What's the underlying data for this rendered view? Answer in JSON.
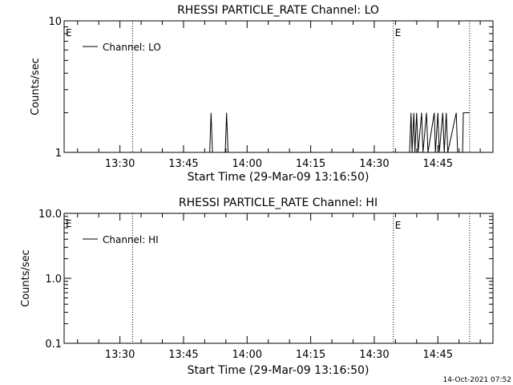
{
  "footer": {
    "timestamp": "14-Oct-2021 07:52"
  },
  "chart_data": [
    {
      "type": "line",
      "title": "RHESSI PARTICLE_RATE Channel: LO",
      "xlabel": "Start Time (29-Mar-09 13:16:50)",
      "ylabel": "Counts/sec",
      "yscale": "log",
      "ylim": [
        1,
        10
      ],
      "ytick_labels": [
        "10",
        "1"
      ],
      "xlim": [
        "13:16:50",
        "14:58:00"
      ],
      "xtick_labels": [
        "13:30",
        "13:45",
        "14:00",
        "14:15",
        "14:30",
        "14:45"
      ],
      "event_lines": [
        {
          "time": "13:33:00",
          "label": ""
        },
        {
          "time": "14:34:30",
          "label": "E"
        },
        {
          "time": "14:52:30",
          "label": ""
        }
      ],
      "left_marker": "E",
      "legend": {
        "label": "Channel: LO",
        "position": "top-left"
      },
      "series": [
        {
          "name": "Channel: LO",
          "points": [
            [
              "13:16:50",
              1
            ],
            [
              "13:51:10",
              1
            ],
            [
              "13:51:30",
              2
            ],
            [
              "13:51:50",
              1
            ],
            [
              "13:54:50",
              1
            ],
            [
              "13:55:10",
              2
            ],
            [
              "13:55:30",
              1
            ],
            [
              "14:38:20",
              1
            ],
            [
              "14:38:40",
              2
            ],
            [
              "14:38:55",
              1
            ],
            [
              "14:39:20",
              2
            ],
            [
              "14:39:35",
              1
            ],
            [
              "14:40:00",
              2
            ],
            [
              "14:40:20",
              1
            ],
            [
              "14:41:10",
              2
            ],
            [
              "14:41:30",
              1
            ],
            [
              "14:42:20",
              2
            ],
            [
              "14:42:40",
              1
            ],
            [
              "14:44:10",
              2
            ],
            [
              "14:44:25",
              1
            ],
            [
              "14:45:00",
              2
            ],
            [
              "14:45:20",
              1
            ],
            [
              "14:46:10",
              2
            ],
            [
              "14:46:30",
              1
            ],
            [
              "14:47:00",
              2
            ],
            [
              "14:47:20",
              1
            ],
            [
              "14:49:20",
              2
            ],
            [
              "14:49:40",
              1
            ],
            [
              "14:50:50",
              1
            ],
            [
              "14:51:00",
              2
            ],
            [
              "14:52:30",
              2
            ]
          ]
        }
      ]
    },
    {
      "type": "line",
      "title": "RHESSI PARTICLE_RATE Channel: HI",
      "xlabel": "Start Time (29-Mar-09 13:16:50)",
      "ylabel": "Counts/sec",
      "yscale": "log",
      "ylim": [
        0.1,
        10
      ],
      "ytick_labels": [
        "10.0",
        "1.0",
        "0.1"
      ],
      "xlim": [
        "13:16:50",
        "14:58:00"
      ],
      "xtick_labels": [
        "13:30",
        "13:45",
        "14:00",
        "14:15",
        "14:30",
        "14:45"
      ],
      "event_lines": [
        {
          "time": "13:33:00",
          "label": ""
        },
        {
          "time": "14:34:30",
          "label": "E"
        },
        {
          "time": "14:52:30",
          "label": ""
        }
      ],
      "left_marker": "E",
      "legend": {
        "label": "Channel: HI",
        "position": "top-left"
      },
      "series": [
        {
          "name": "Channel: HI",
          "points": []
        }
      ]
    }
  ]
}
